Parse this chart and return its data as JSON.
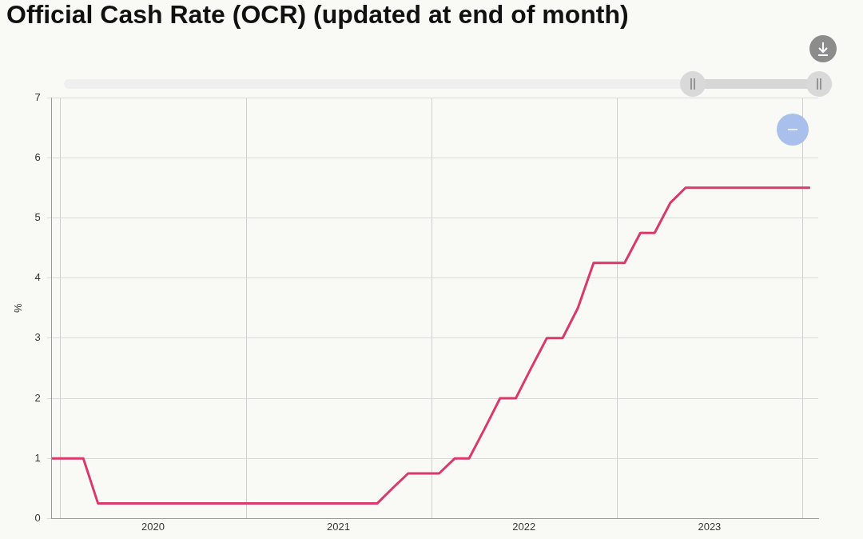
{
  "chart_data": {
    "type": "line",
    "title": "Official Cash Rate (OCR) (updated at end of month)",
    "ylabel": "%",
    "x": [
      "2019-12-15",
      "2020-01-15",
      "2020-02-15",
      "2020-03-15",
      "2020-04-15",
      "2020-05-15",
      "2020-06-15",
      "2020-07-15",
      "2020-08-15",
      "2020-09-15",
      "2020-10-15",
      "2020-11-15",
      "2020-12-15",
      "2021-01-15",
      "2021-02-15",
      "2021-03-15",
      "2021-04-15",
      "2021-05-15",
      "2021-06-15",
      "2021-07-15",
      "2021-08-15",
      "2021-09-15",
      "2021-10-15",
      "2021-11-15",
      "2021-12-15",
      "2022-01-15",
      "2022-02-15",
      "2022-03-15",
      "2022-04-15",
      "2022-05-15",
      "2022-06-15",
      "2022-07-15",
      "2022-08-15",
      "2022-09-15",
      "2022-10-15",
      "2022-11-15",
      "2022-12-15",
      "2023-01-15",
      "2023-02-15",
      "2023-03-15",
      "2023-04-15",
      "2023-05-15",
      "2023-06-15",
      "2023-07-15",
      "2023-08-15",
      "2023-09-15",
      "2023-10-15",
      "2023-11-15",
      "2023-12-15",
      "2024-01-15"
    ],
    "series": [
      {
        "color": "#d93a6a",
        "values": [
          1,
          1,
          1,
          0.25,
          0.25,
          0.25,
          0.25,
          0.25,
          0.25,
          0.25,
          0.25,
          0.25,
          0.25,
          0.25,
          0.25,
          0.25,
          0.25,
          0.25,
          0.25,
          0.25,
          0.25,
          0.25,
          0.5,
          0.75,
          0.75,
          0.75,
          1,
          1,
          1.5,
          2,
          2,
          2.5,
          3,
          3,
          3.5,
          4.25,
          4.25,
          4.25,
          4.75,
          4.75,
          5.25,
          5.5,
          5.5,
          5.5,
          5.5,
          5.5,
          5.5,
          5.5,
          5.5,
          5.5
        ]
      }
    ],
    "xlim": [
      "2019-12-15",
      "2024-01-31"
    ],
    "xticks": [
      {
        "value": "2020-01-01",
        "label": null
      },
      {
        "value": "2020-07-01",
        "label": "2020"
      },
      {
        "value": "2021-01-01",
        "label": null
      },
      {
        "value": "2021-07-01",
        "label": "2021"
      },
      {
        "value": "2022-01-01",
        "label": null
      },
      {
        "value": "2022-07-01",
        "label": "2022"
      },
      {
        "value": "2023-01-01",
        "label": null
      },
      {
        "value": "2023-07-01",
        "label": "2023"
      },
      {
        "value": "2024-01-01",
        "label": null
      }
    ],
    "ylim": [
      0,
      7
    ],
    "yticks": [
      0,
      1,
      2,
      3,
      4,
      5,
      6,
      7
    ],
    "grid": true,
    "legend": false,
    "marker": "none",
    "line_style": "solid"
  }
}
